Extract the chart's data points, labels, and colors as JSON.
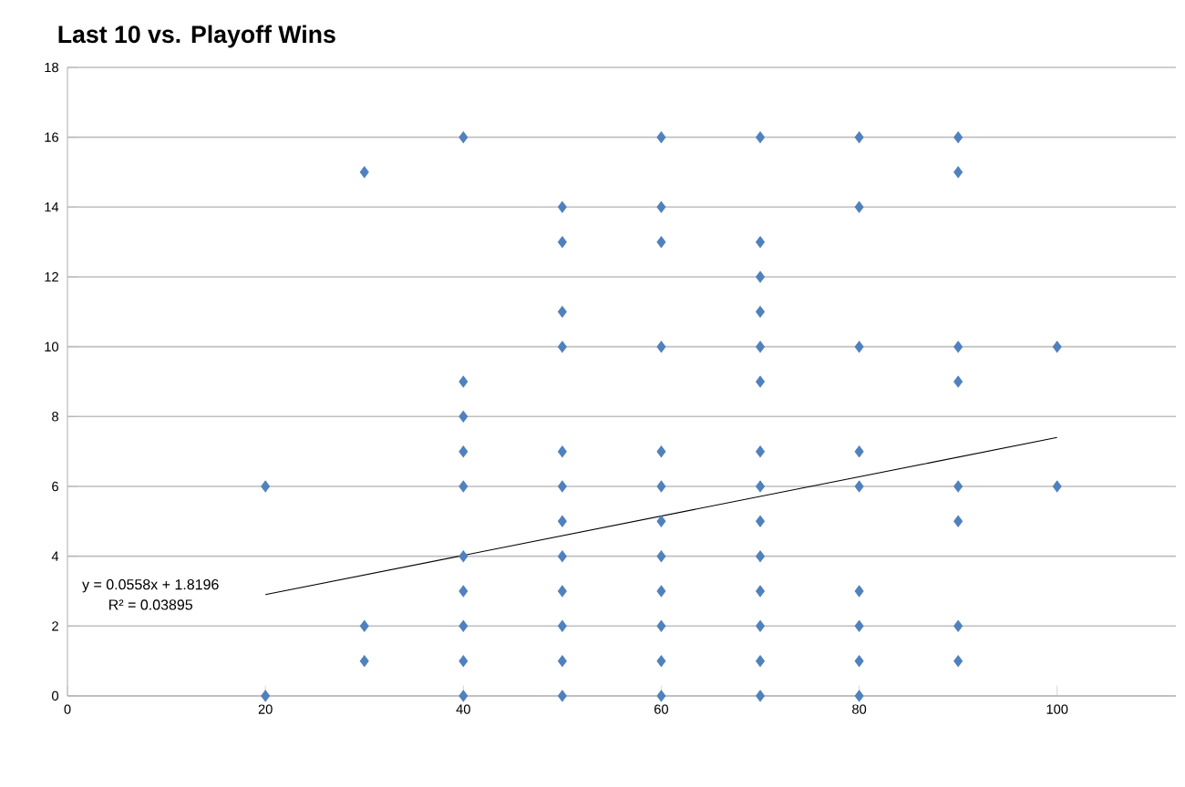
{
  "chart_data": {
    "type": "scatter",
    "title": "Last 10 vs. Playoff Wins",
    "xlim": [
      0,
      112
    ],
    "xticks": [
      0,
      20,
      40,
      60,
      80,
      100
    ],
    "ylim": [
      0,
      18
    ],
    "yticks": [
      0,
      2,
      4,
      6,
      8,
      10,
      12,
      14,
      16,
      18
    ],
    "grid": "y",
    "marker": "diamond",
    "series": [
      {
        "color": "#4f81bd",
        "x": [
          20,
          20,
          30,
          30,
          30,
          40,
          40,
          40,
          40,
          40,
          40,
          40,
          40,
          40,
          40,
          50,
          50,
          50,
          50,
          50,
          50,
          50,
          50,
          50,
          50,
          50,
          50,
          60,
          60,
          60,
          60,
          60,
          60,
          60,
          60,
          60,
          60,
          60,
          60,
          70,
          70,
          70,
          70,
          70,
          70,
          70,
          70,
          70,
          70,
          70,
          70,
          70,
          70,
          80,
          80,
          80,
          80,
          80,
          80,
          80,
          80,
          80,
          90,
          90,
          90,
          90,
          90,
          90,
          90,
          90,
          100,
          100
        ],
        "values": [
          6,
          0,
          15,
          2,
          1,
          16,
          9,
          8,
          7,
          6,
          4,
          3,
          2,
          1,
          0,
          14,
          13,
          11,
          10,
          7,
          6,
          5,
          4,
          3,
          2,
          1,
          0,
          16,
          14,
          13,
          10,
          7,
          6,
          5,
          4,
          3,
          2,
          1,
          0,
          16,
          13,
          12,
          11,
          10,
          9,
          7,
          6,
          5,
          4,
          3,
          2,
          1,
          0,
          16,
          14,
          10,
          7,
          6,
          3,
          2,
          1,
          0,
          16,
          15,
          10,
          9,
          6,
          5,
          2,
          1,
          10,
          6
        ]
      },
      {
        "type": "line",
        "color": "#000000",
        "marker": "none",
        "x": [
          20,
          100
        ],
        "values": [
          2.9,
          7.4
        ]
      }
    ],
    "annotations": [
      "y = 0.0558x + 1.8196",
      "R² = 0.03895"
    ]
  }
}
